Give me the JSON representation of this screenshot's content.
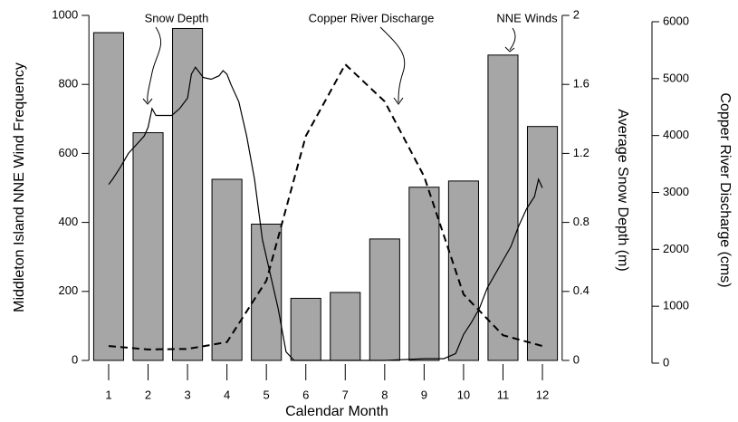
{
  "chart_data": {
    "type": "bar-line",
    "xlabel": "Calendar Month",
    "ylabel": "Middleton Island NNE Wind Frequency",
    "y2label": "Average Snow Depth (m)",
    "y3label": "Copper River Discharge (cms)",
    "xlim": [
      0.5,
      12.5
    ],
    "xticks": [
      1,
      2,
      3,
      4,
      5,
      6,
      7,
      8,
      9,
      10,
      11,
      12
    ],
    "ylim": [
      0,
      1000
    ],
    "yticks": [
      0,
      200,
      400,
      600,
      800,
      1000
    ],
    "y2lim": [
      0,
      2
    ],
    "y2ticks": [
      0,
      0.4,
      0.8,
      1.2,
      1.6,
      2
    ],
    "y3lim": [
      0,
      6000
    ],
    "y3ticks": [
      0,
      1000,
      2000,
      3000,
      4000,
      5000,
      6000
    ],
    "series": [
      {
        "name": "NNE Winds",
        "type": "bar",
        "axis": "y",
        "color": "#a6a6a6",
        "x": [
          1,
          2,
          3,
          4,
          5,
          6,
          7,
          8,
          9,
          10,
          11,
          12
        ],
        "values": [
          950,
          660,
          962,
          525,
          395,
          180,
          197,
          352,
          502,
          520,
          885,
          678
        ]
      },
      {
        "name": "Snow Depth",
        "type": "line",
        "axis": "y2",
        "color": "#000000",
        "dash": false,
        "x": [
          1.0,
          1.1,
          1.3,
          1.5,
          1.7,
          1.9,
          2.0,
          2.1,
          2.2,
          2.4,
          2.6,
          2.8,
          3.0,
          3.1,
          3.2,
          3.4,
          3.6,
          3.8,
          3.9,
          4.0,
          4.1,
          4.3,
          4.5,
          4.7,
          4.9,
          5.1,
          5.3,
          5.5,
          5.7,
          6.0,
          7.0,
          8.0,
          9.0,
          9.5,
          9.8,
          10.0,
          10.2,
          10.4,
          10.6,
          10.8,
          11.0,
          11.2,
          11.4,
          11.6,
          11.8,
          11.9,
          12.0
        ],
        "values": [
          1.02,
          1.05,
          1.12,
          1.2,
          1.25,
          1.3,
          1.35,
          1.46,
          1.42,
          1.42,
          1.42,
          1.46,
          1.52,
          1.66,
          1.7,
          1.64,
          1.63,
          1.65,
          1.68,
          1.66,
          1.6,
          1.5,
          1.3,
          1.05,
          0.7,
          0.5,
          0.3,
          0.05,
          0.0,
          0.0,
          0.0,
          0.0,
          0.01,
          0.01,
          0.04,
          0.15,
          0.22,
          0.3,
          0.42,
          0.5,
          0.58,
          0.66,
          0.78,
          0.88,
          0.95,
          1.05,
          1.0
        ]
      },
      {
        "name": "Copper River Discharge",
        "type": "line",
        "axis": "y3",
        "color": "#000000",
        "dash": true,
        "x": [
          1,
          2,
          3,
          4,
          5,
          6,
          7,
          8,
          9,
          10,
          11,
          12
        ],
        "values": [
          300,
          240,
          250,
          370,
          1450,
          3990,
          5250,
          4600,
          3280,
          1210,
          490,
          300
        ]
      }
    ]
  }
}
